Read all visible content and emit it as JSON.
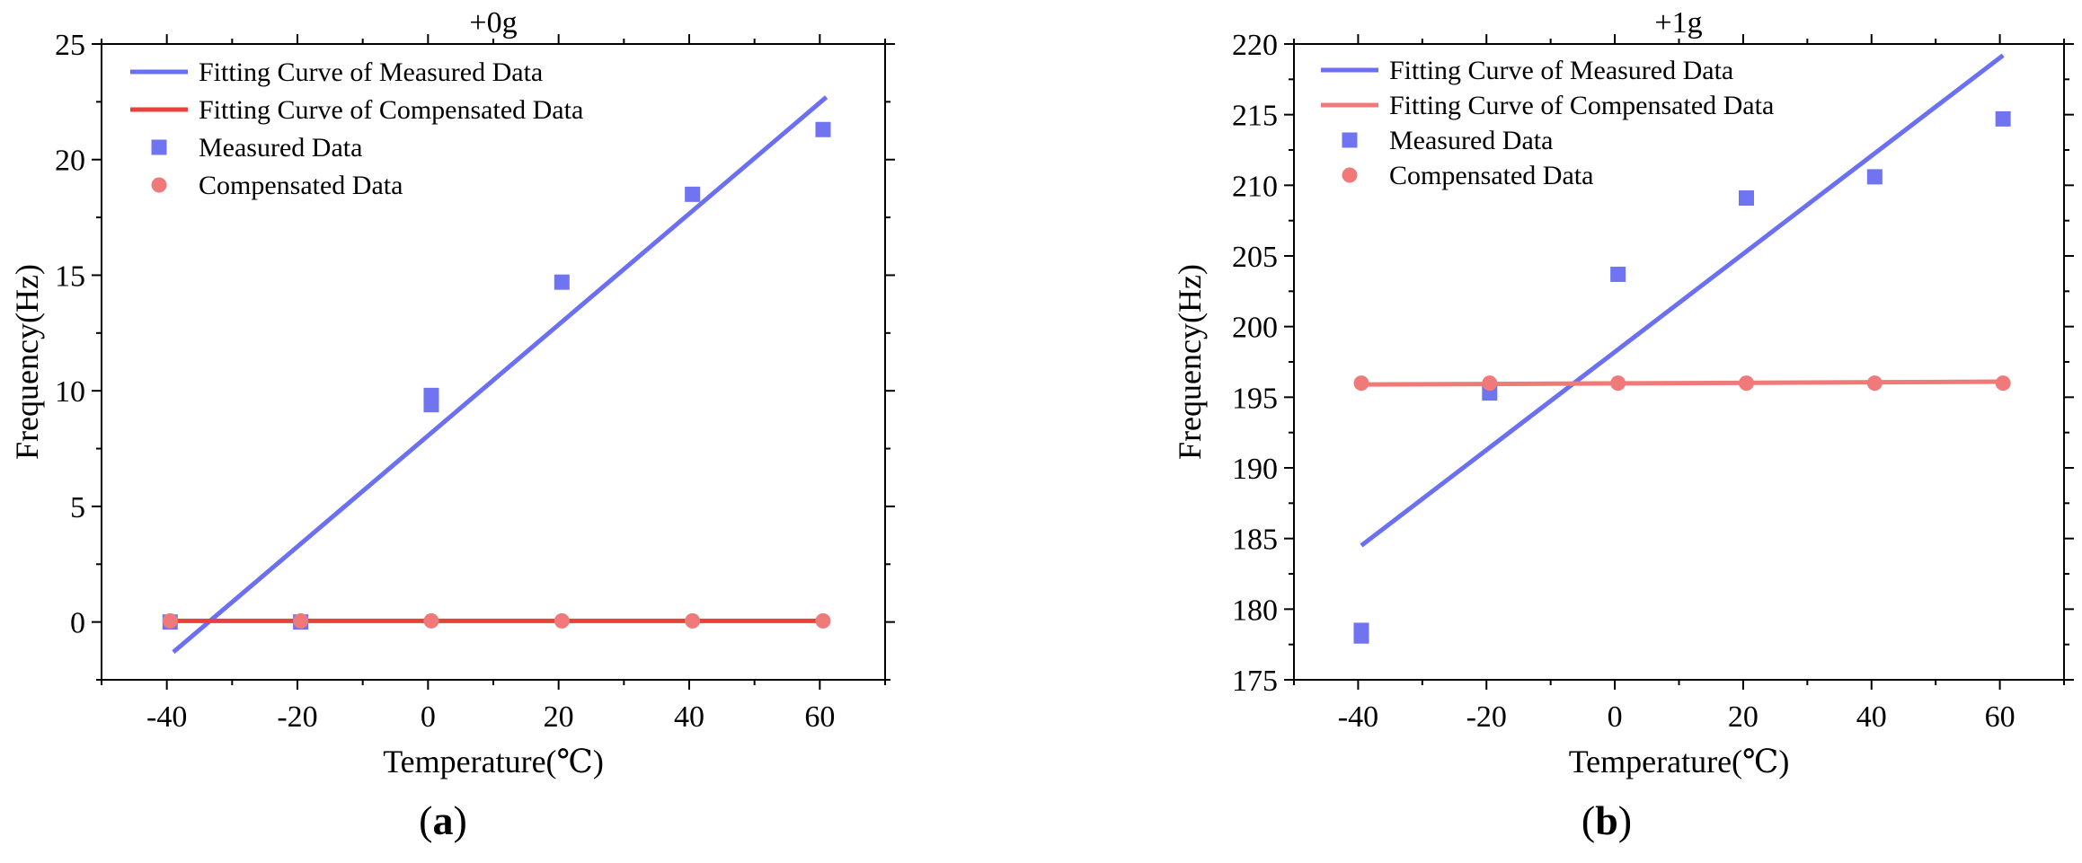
{
  "colors": {
    "measured": "#7074f0",
    "measured_fit": "#6b70f2",
    "compensated": "#f07a7a",
    "compensated_fit": "#e8413c",
    "axis": "#000000"
  },
  "captions": [
    "a",
    "b"
  ],
  "chart_data": [
    {
      "type": "scatter",
      "title": "+0g",
      "xlabel": "Temperature(℃)",
      "ylabel": "Frequency(Hz)",
      "xlim": [
        -50,
        70
      ],
      "ylim": [
        -2.5,
        25
      ],
      "xticks": [
        -40,
        -20,
        0,
        20,
        40,
        60
      ],
      "yticks": [
        0,
        5,
        10,
        15,
        20,
        25
      ],
      "legend_position": "top-left",
      "grid": false,
      "series": [
        {
          "name": "Fitting Curve of Measured Data",
          "kind": "line",
          "color": "measured_fit",
          "x": [
            -39,
            61
          ],
          "y": [
            -1.3,
            22.7
          ]
        },
        {
          "name": "Fitting Curve of Compensated Data",
          "kind": "line",
          "color": "compensated_fit",
          "x": [
            -40,
            61
          ],
          "y": [
            0.05,
            0.05
          ]
        },
        {
          "name": "Measured Data",
          "kind": "square",
          "color": "measured",
          "x": [
            -39.5,
            -19.5,
            0.5,
            0.5,
            20.5,
            40.5,
            60.5
          ],
          "y": [
            0.0,
            0.0,
            9.4,
            9.8,
            14.7,
            18.5,
            21.3
          ]
        },
        {
          "name": "Compensated Data",
          "kind": "circle",
          "color": "compensated",
          "x": [
            -39.5,
            -19.5,
            0.5,
            20.5,
            40.5,
            60.5
          ],
          "y": [
            0.05,
            0.05,
            0.05,
            0.05,
            0.05,
            0.05
          ]
        }
      ]
    },
    {
      "type": "scatter",
      "title": "+1g",
      "xlabel": "Temperature(℃)",
      "ylabel": "Frequency(Hz)",
      "xlim": [
        -50,
        70
      ],
      "ylim": [
        175,
        220
      ],
      "xticks": [
        -40,
        -20,
        0,
        20,
        40,
        60
      ],
      "yticks": [
        175,
        180,
        185,
        190,
        195,
        200,
        205,
        210,
        215,
        220
      ],
      "legend_position": "top-left",
      "grid": false,
      "series": [
        {
          "name": "Fitting Curve of Measured Data",
          "kind": "line",
          "color": "measured_fit",
          "x": [
            -39.5,
            60.5
          ],
          "y": [
            184.5,
            219.2
          ]
        },
        {
          "name": "Fitting Curve of Compensated Data",
          "kind": "line",
          "color": "compensated",
          "x": [
            -39.5,
            60.5
          ],
          "y": [
            195.9,
            196.1
          ]
        },
        {
          "name": "Measured Data",
          "kind": "square",
          "color": "measured",
          "x": [
            -39.5,
            -39.5,
            -19.5,
            0.5,
            20.5,
            40.5,
            60.5
          ],
          "y": [
            178.1,
            178.5,
            195.3,
            203.7,
            209.1,
            210.6,
            214.7
          ]
        },
        {
          "name": "Compensated Data",
          "kind": "circle",
          "color": "compensated",
          "x": [
            -39.5,
            -19.5,
            0.5,
            20.5,
            40.5,
            60.5
          ],
          "y": [
            196.0,
            196.0,
            196.0,
            196.0,
            196.0,
            196.0
          ]
        }
      ]
    }
  ]
}
